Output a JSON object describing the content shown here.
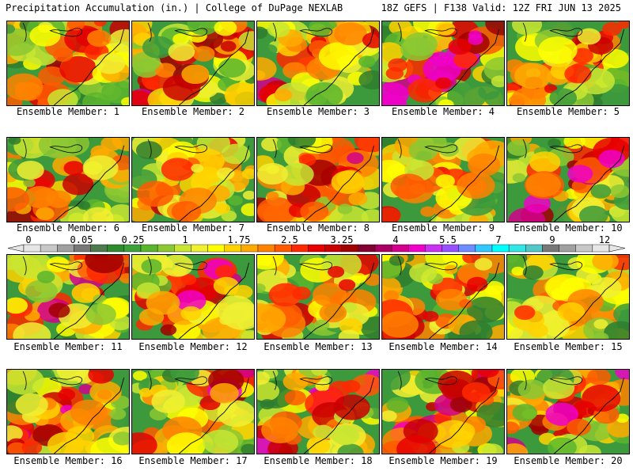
{
  "header": {
    "left": "Precipitation Accumulation (in.) | College of DuPage NEXLAB",
    "right": "18Z GEFS | F138 Valid: 12Z FRI JUN 13 2025"
  },
  "panels": [
    {
      "label": "Ensemble Member: 1",
      "intensity": 0.55
    },
    {
      "label": "Ensemble Member: 2",
      "intensity": 0.6
    },
    {
      "label": "Ensemble Member: 3",
      "intensity": 0.5
    },
    {
      "label": "Ensemble Member: 4",
      "intensity": 0.8
    },
    {
      "label": "Ensemble Member: 5",
      "intensity": 0.45
    },
    {
      "label": "Ensemble Member: 6",
      "intensity": 0.5
    },
    {
      "label": "Ensemble Member: 7",
      "intensity": 0.35
    },
    {
      "label": "Ensemble Member: 8",
      "intensity": 0.5
    },
    {
      "label": "Ensemble Member: 9",
      "intensity": 0.4
    },
    {
      "label": "Ensemble Member: 10",
      "intensity": 0.7
    },
    {
      "label": "Ensemble Member: 11",
      "intensity": 0.55
    },
    {
      "label": "Ensemble Member: 12",
      "intensity": 0.65
    },
    {
      "label": "Ensemble Member: 13",
      "intensity": 0.4
    },
    {
      "label": "Ensemble Member: 14",
      "intensity": 0.35
    },
    {
      "label": "Ensemble Member: 15",
      "intensity": 0.4
    },
    {
      "label": "Ensemble Member: 16",
      "intensity": 0.65
    },
    {
      "label": "Ensemble Member: 17",
      "intensity": 0.5
    },
    {
      "label": "Ensemble Member: 18",
      "intensity": 0.7
    },
    {
      "label": "Ensemble Member: 19",
      "intensity": 0.6
    },
    {
      "label": "Ensemble Member: 20",
      "intensity": 0.6
    }
  ],
  "colorbar": {
    "labels": [
      "0",
      "0.05",
      "0.25",
      "1",
      "1.75",
      "2.5",
      "3.25",
      "4",
      "5.5",
      "7",
      "9",
      "12"
    ],
    "colors": [
      "#e6e6e6",
      "#c8c8c8",
      "#a0a0a0",
      "#787878",
      "#4e7a4e",
      "#2e8b2e",
      "#3ca03c",
      "#5ab52e",
      "#8cc832",
      "#c8e632",
      "#f0f032",
      "#ffff00",
      "#ffd200",
      "#ffaa00",
      "#ff8200",
      "#ff5a00",
      "#ff2800",
      "#e60000",
      "#c80000",
      "#a00000",
      "#820032",
      "#aa0064",
      "#d2008c",
      "#f000c8",
      "#c832f0",
      "#9650ff",
      "#6e8cff",
      "#32c8ff",
      "#00ffff",
      "#32e6e6",
      "#50c8c8",
      "#787878",
      "#a0a0a0",
      "#c8c8c8",
      "#e6e6e6"
    ]
  }
}
